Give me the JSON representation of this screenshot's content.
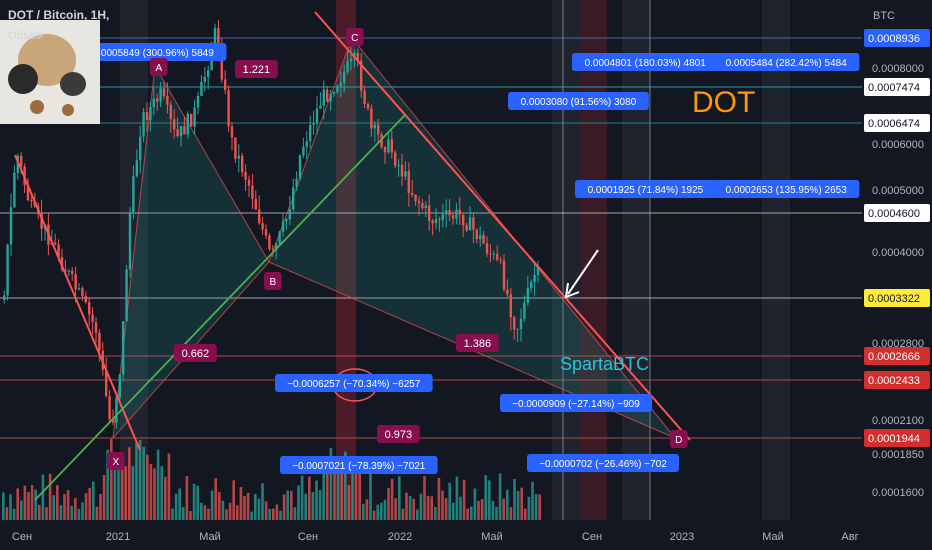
{
  "header": {
    "symbol": "DOT / Bitcoin, 1H,",
    "volume_label": "Объём",
    "unit": "BTC"
  },
  "annotation_title": "DOT",
  "watermark": "SpartaBTC",
  "colors": {
    "background": "#131722",
    "up": "#26a69a",
    "down": "#ef5350",
    "trendline": "#ef5350",
    "support": "#4caf50",
    "measure_box": "#2962ff",
    "label_box": "#880e4f"
  },
  "chart_data": {
    "type": "candlestick",
    "scale": "log",
    "y_ticks": [
      "0.0008000",
      "0.0006000",
      "0.0005000",
      "0.0004000",
      "0.0002800",
      "0.0002100",
      "0.0001850",
      "0.0001600"
    ],
    "x_ticks": [
      "Сен",
      "2021",
      "Май",
      "Сен",
      "2022",
      "Май",
      "Сен",
      "2023",
      "Май",
      "Авг"
    ],
    "price_tags": [
      {
        "value": "0.0008936",
        "style": "blue"
      },
      {
        "value": "0.0007474",
        "style": "cyan"
      },
      {
        "value": "0.0006474",
        "style": "teal"
      },
      {
        "value": "0.0004600",
        "style": "white"
      },
      {
        "value": "0.0003322",
        "style": "yellow"
      },
      {
        "value": "0.0002666",
        "style": "red"
      },
      {
        "value": "0.0002433",
        "style": "red"
      },
      {
        "value": "0.0001944",
        "style": "red"
      }
    ],
    "points": [
      "X",
      "A",
      "B",
      "C",
      "D"
    ],
    "ratios": [
      "1.221",
      "0.662",
      "1.386",
      "0.973"
    ],
    "measurements": [
      "0.0005849 (300.96%) 5849",
      "0.0004801 (180.03%) 4801",
      "0.0005484 (282.42%) 5484",
      "0.0003080 (91.56%) 3080",
      "0.0001925 (71.84%) 1925",
      "0.0002653 (135.95%) 2653",
      "−0.0006257 (−70.34%) −6257",
      "−0.0000909 (−27.14%) −909",
      "−0.0007021 (−78.39%) −7021",
      "−0.0000702 (−26.46%) −702"
    ]
  }
}
